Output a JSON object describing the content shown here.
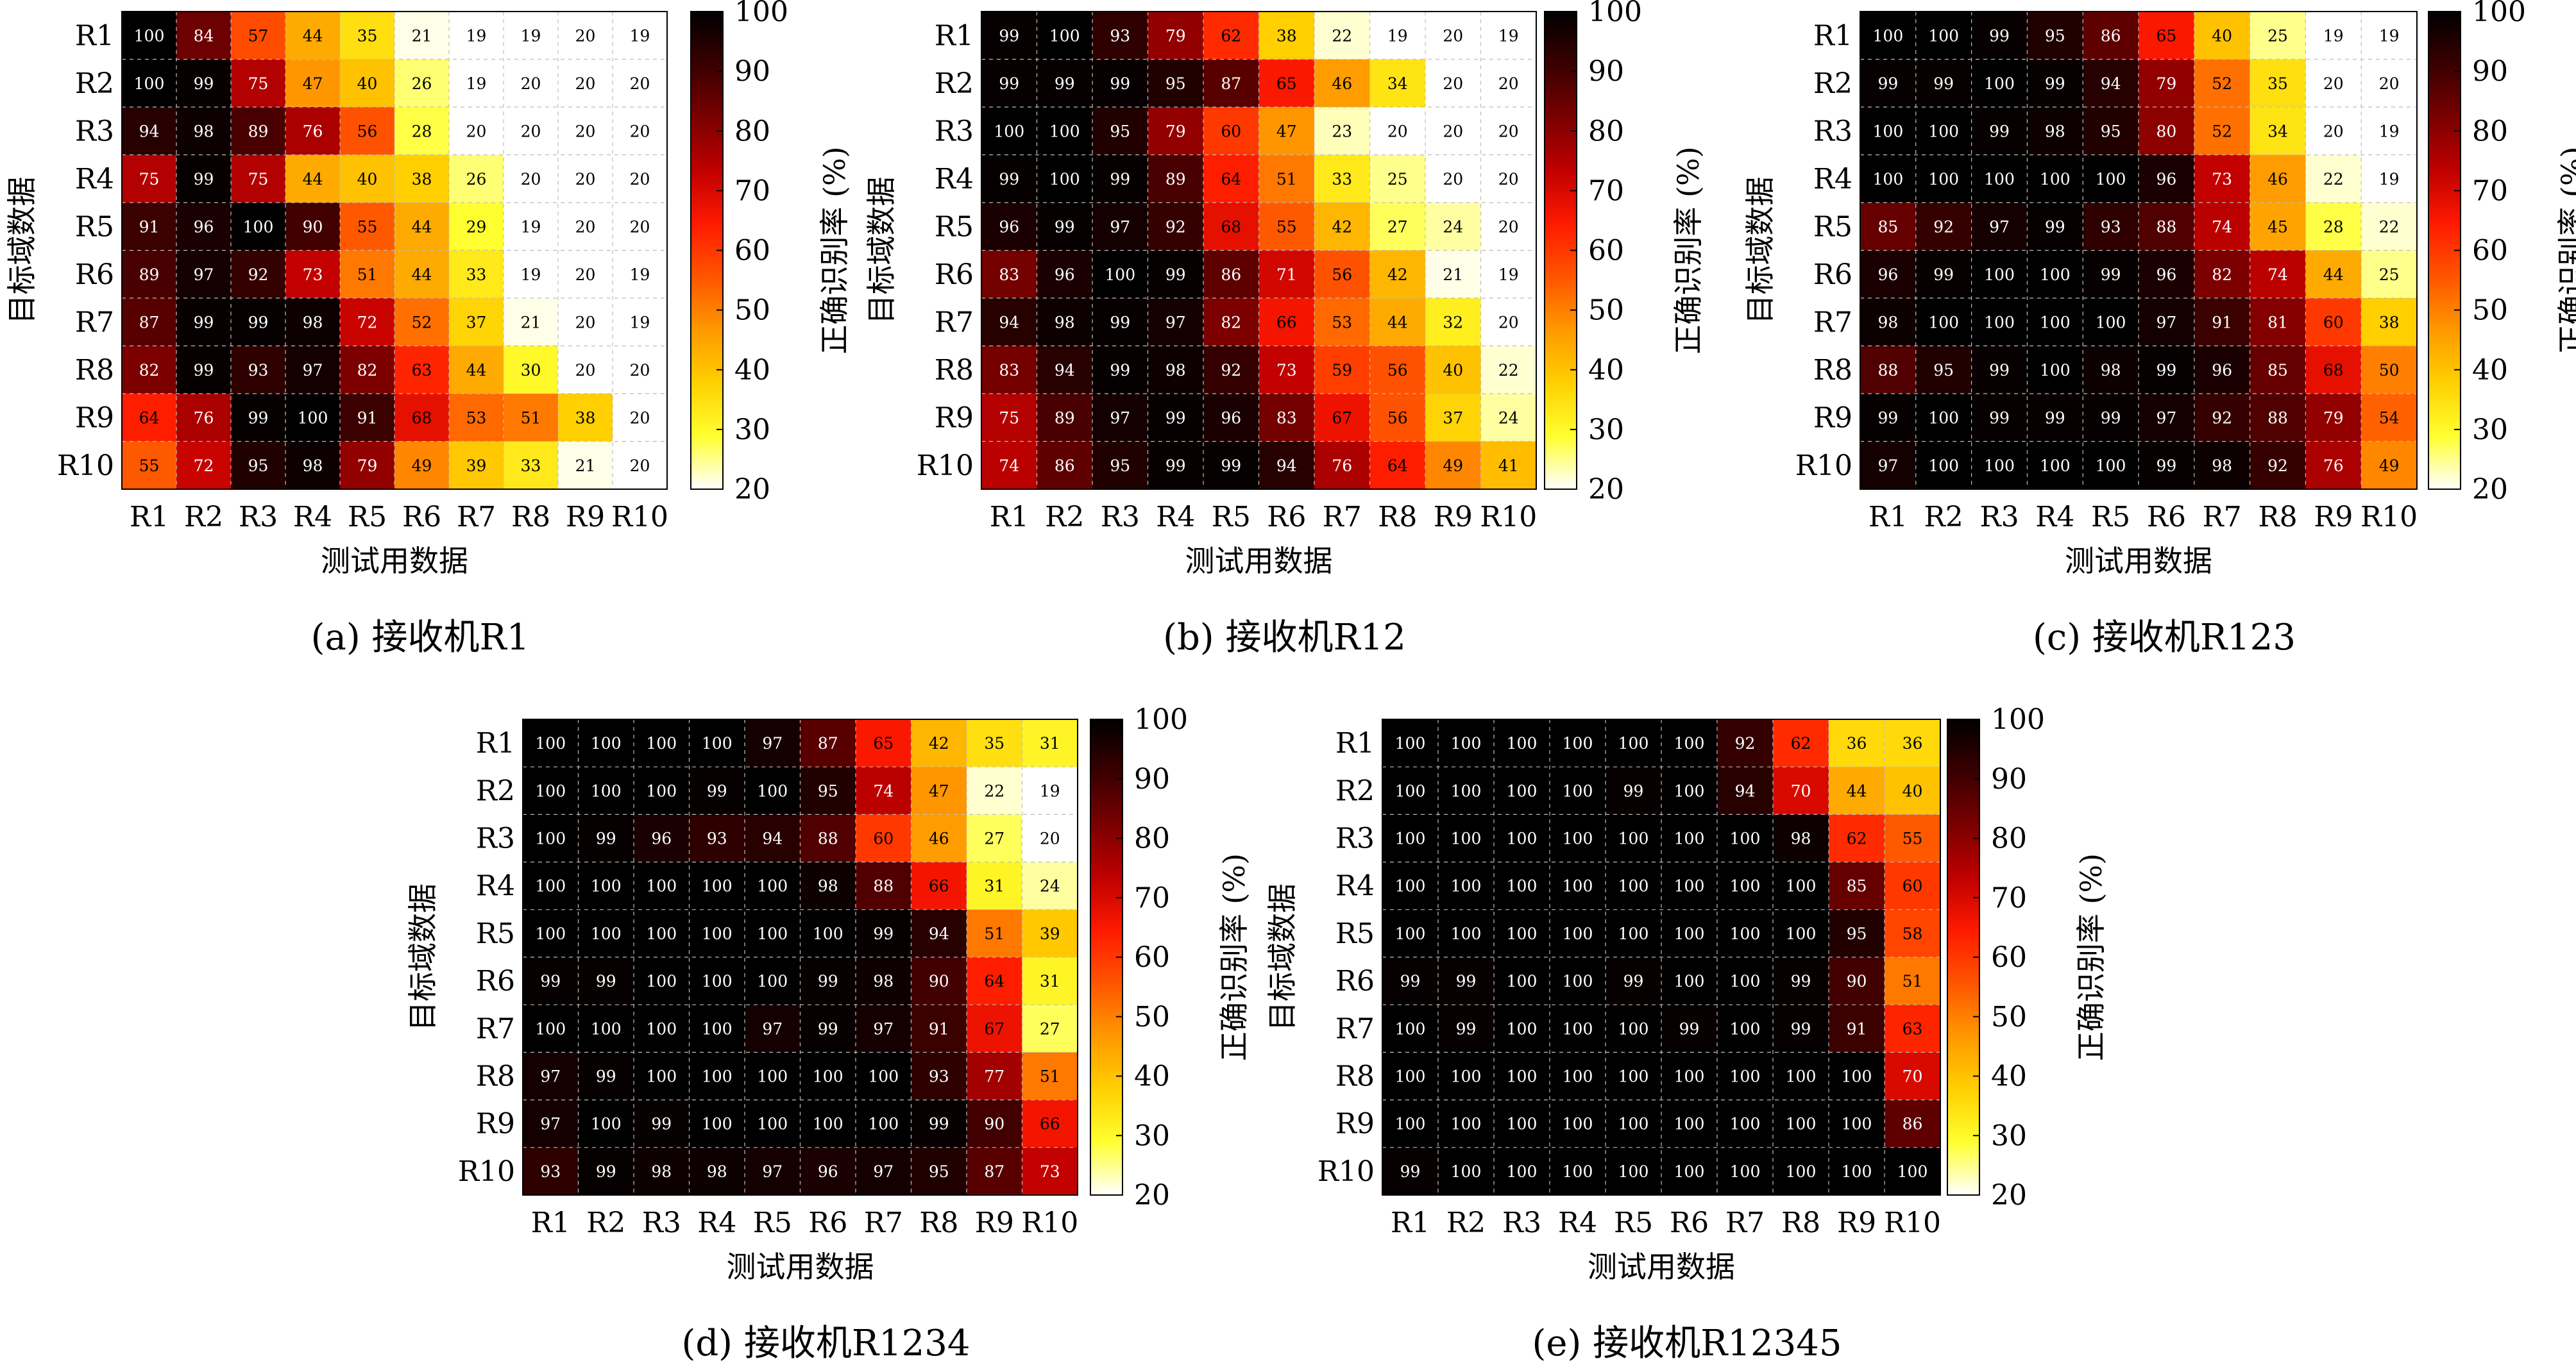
{
  "figure": {
    "colorbar_ticks": [
      "100",
      "90",
      "80",
      "70",
      "60",
      "50",
      "40",
      "30",
      "20"
    ],
    "colormap": [
      "#ffffff",
      "#ffff30",
      "#ffd000",
      "#ff9900",
      "#ff5500",
      "#ff1a00",
      "#c00000",
      "#7a0000",
      "#3a0000",
      "#000000"
    ],
    "cell_label_colors": {
      "light": "#ffffff",
      "dark": "#000000"
    }
  },
  "chart_data": [
    {
      "type": "heatmap",
      "caption": "(a) 接收机R1",
      "xlabel": "测试用数据",
      "ylabel": "目标域数据",
      "colorbar_label": "正确识别率 (%)",
      "x_categories": [
        "R1",
        "R2",
        "R3",
        "R4",
        "R5",
        "R6",
        "R7",
        "R8",
        "R9",
        "R10"
      ],
      "y_categories": [
        "R1",
        "R2",
        "R3",
        "R4",
        "R5",
        "R6",
        "R7",
        "R8",
        "R9",
        "R10"
      ],
      "zlim": [
        20,
        100
      ],
      "values": [
        [
          100,
          84,
          57,
          44,
          35,
          21,
          19,
          19,
          20,
          19
        ],
        [
          100,
          99,
          75,
          47,
          40,
          26,
          19,
          20,
          20,
          20
        ],
        [
          94,
          98,
          89,
          76,
          56,
          28,
          20,
          20,
          20,
          20
        ],
        [
          75,
          99,
          75,
          44,
          40,
          38,
          26,
          20,
          20,
          20
        ],
        [
          91,
          96,
          100,
          90,
          55,
          44,
          29,
          19,
          20,
          20
        ],
        [
          89,
          97,
          92,
          73,
          51,
          44,
          33,
          19,
          20,
          19
        ],
        [
          87,
          99,
          99,
          98,
          72,
          52,
          37,
          21,
          20,
          19
        ],
        [
          82,
          99,
          93,
          97,
          82,
          63,
          44,
          30,
          20,
          20
        ],
        [
          64,
          76,
          99,
          100,
          91,
          68,
          53,
          51,
          38,
          20
        ],
        [
          55,
          72,
          95,
          98,
          79,
          49,
          39,
          33,
          21,
          20
        ]
      ]
    },
    {
      "type": "heatmap",
      "caption": "(b) 接收机R12",
      "xlabel": "测试用数据",
      "ylabel": "目标域数据",
      "colorbar_label": "正确识别率 (%)",
      "x_categories": [
        "R1",
        "R2",
        "R3",
        "R4",
        "R5",
        "R6",
        "R7",
        "R8",
        "R9",
        "R10"
      ],
      "y_categories": [
        "R1",
        "R2",
        "R3",
        "R4",
        "R5",
        "R6",
        "R7",
        "R8",
        "R9",
        "R10"
      ],
      "zlim": [
        20,
        100
      ],
      "values": [
        [
          99,
          100,
          93,
          79,
          62,
          38,
          22,
          19,
          20,
          19
        ],
        [
          99,
          99,
          99,
          95,
          87,
          65,
          46,
          34,
          20,
          20
        ],
        [
          100,
          100,
          95,
          79,
          60,
          47,
          23,
          20,
          20,
          20
        ],
        [
          99,
          100,
          99,
          89,
          64,
          51,
          33,
          25,
          20,
          20
        ],
        [
          96,
          99,
          97,
          92,
          68,
          55,
          42,
          27,
          24,
          20
        ],
        [
          83,
          96,
          100,
          99,
          86,
          71,
          56,
          42,
          21,
          19
        ],
        [
          94,
          98,
          99,
          97,
          82,
          66,
          53,
          44,
          32,
          20
        ],
        [
          83,
          94,
          99,
          98,
          92,
          73,
          59,
          56,
          40,
          22
        ],
        [
          75,
          89,
          97,
          99,
          96,
          83,
          67,
          56,
          37,
          24
        ],
        [
          74,
          86,
          95,
          99,
          99,
          94,
          76,
          64,
          49,
          41
        ]
      ]
    },
    {
      "type": "heatmap",
      "caption": "(c) 接收机R123",
      "xlabel": "测试用数据",
      "ylabel": "目标域数据",
      "colorbar_label": "正确识别率 (%)",
      "x_categories": [
        "R1",
        "R2",
        "R3",
        "R4",
        "R5",
        "R6",
        "R7",
        "R8",
        "R9",
        "R10"
      ],
      "y_categories": [
        "R1",
        "R2",
        "R3",
        "R4",
        "R5",
        "R6",
        "R7",
        "R8",
        "R9",
        "R10"
      ],
      "zlim": [
        20,
        100
      ],
      "values": [
        [
          100,
          100,
          99,
          95,
          86,
          65,
          40,
          25,
          19,
          19
        ],
        [
          99,
          99,
          100,
          99,
          94,
          79,
          52,
          35,
          20,
          20
        ],
        [
          100,
          100,
          99,
          98,
          95,
          80,
          52,
          34,
          20,
          19
        ],
        [
          100,
          100,
          100,
          100,
          100,
          96,
          73,
          46,
          22,
          19
        ],
        [
          85,
          92,
          97,
          99,
          93,
          88,
          74,
          45,
          28,
          22
        ],
        [
          96,
          99,
          100,
          100,
          99,
          96,
          82,
          74,
          44,
          25
        ],
        [
          98,
          100,
          100,
          100,
          100,
          97,
          91,
          81,
          60,
          38
        ],
        [
          88,
          95,
          99,
          100,
          98,
          99,
          96,
          85,
          68,
          50
        ],
        [
          99,
          100,
          99,
          99,
          99,
          97,
          92,
          88,
          79,
          54
        ],
        [
          97,
          100,
          100,
          100,
          100,
          99,
          98,
          92,
          76,
          49
        ]
      ]
    },
    {
      "type": "heatmap",
      "caption": "(d) 接收机R1234",
      "xlabel": "测试用数据",
      "ylabel": "目标域数据",
      "colorbar_label": "正确识别率 (%)",
      "x_categories": [
        "R1",
        "R2",
        "R3",
        "R4",
        "R5",
        "R6",
        "R7",
        "R8",
        "R9",
        "R10"
      ],
      "y_categories": [
        "R1",
        "R2",
        "R3",
        "R4",
        "R5",
        "R6",
        "R7",
        "R8",
        "R9",
        "R10"
      ],
      "zlim": [
        20,
        100
      ],
      "values": [
        [
          100,
          100,
          100,
          100,
          97,
          87,
          65,
          42,
          35,
          31
        ],
        [
          100,
          100,
          100,
          99,
          100,
          95,
          74,
          47,
          22,
          19
        ],
        [
          100,
          99,
          96,
          93,
          94,
          88,
          60,
          46,
          27,
          20
        ],
        [
          100,
          100,
          100,
          100,
          100,
          98,
          88,
          66,
          31,
          24
        ],
        [
          100,
          100,
          100,
          100,
          100,
          100,
          99,
          94,
          51,
          39
        ],
        [
          99,
          99,
          100,
          100,
          100,
          99,
          98,
          90,
          64,
          31
        ],
        [
          100,
          100,
          100,
          100,
          97,
          99,
          97,
          91,
          67,
          27
        ],
        [
          97,
          99,
          100,
          100,
          100,
          100,
          100,
          93,
          77,
          51
        ],
        [
          97,
          100,
          99,
          100,
          100,
          100,
          100,
          99,
          90,
          66
        ],
        [
          93,
          99,
          98,
          98,
          97,
          96,
          97,
          95,
          87,
          73
        ]
      ]
    },
    {
      "type": "heatmap",
      "caption": "(e) 接收机R12345",
      "xlabel": "测试用数据",
      "ylabel": "目标域数据",
      "colorbar_label": "正确识别率 (%)",
      "x_categories": [
        "R1",
        "R2",
        "R3",
        "R4",
        "R5",
        "R6",
        "R7",
        "R8",
        "R9",
        "R10"
      ],
      "y_categories": [
        "R1",
        "R2",
        "R3",
        "R4",
        "R5",
        "R6",
        "R7",
        "R8",
        "R9",
        "R10"
      ],
      "zlim": [
        20,
        100
      ],
      "values": [
        [
          100,
          100,
          100,
          100,
          100,
          100,
          92,
          62,
          36,
          36
        ],
        [
          100,
          100,
          100,
          100,
          99,
          100,
          94,
          70,
          44,
          40
        ],
        [
          100,
          100,
          100,
          100,
          100,
          100,
          100,
          98,
          62,
          55
        ],
        [
          100,
          100,
          100,
          100,
          100,
          100,
          100,
          100,
          85,
          60
        ],
        [
          100,
          100,
          100,
          100,
          100,
          100,
          100,
          100,
          95,
          58
        ],
        [
          99,
          99,
          100,
          100,
          99,
          100,
          100,
          99,
          90,
          51
        ],
        [
          100,
          99,
          100,
          100,
          100,
          99,
          100,
          99,
          91,
          63
        ],
        [
          100,
          100,
          100,
          100,
          100,
          100,
          100,
          100,
          100,
          70
        ],
        [
          100,
          100,
          100,
          100,
          100,
          100,
          100,
          100,
          100,
          86
        ],
        [
          99,
          100,
          100,
          100,
          100,
          100,
          100,
          100,
          100,
          100
        ]
      ]
    }
  ]
}
